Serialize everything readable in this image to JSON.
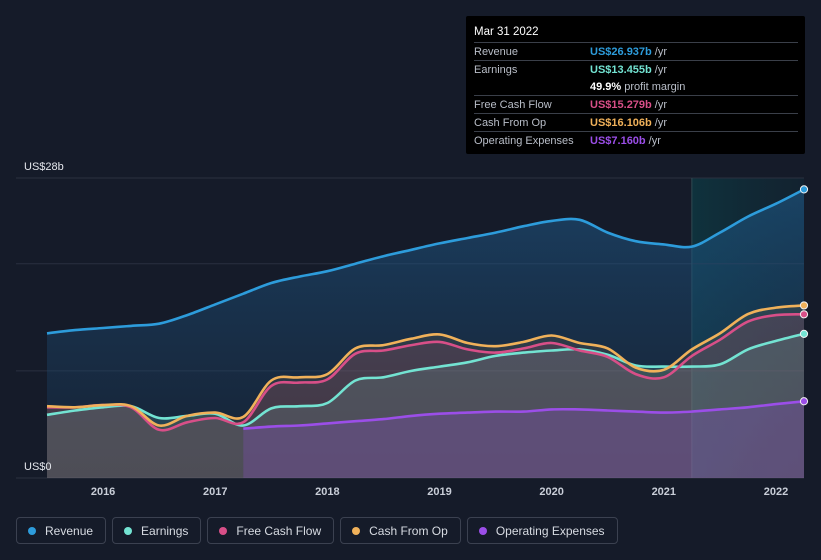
{
  "tooltip": {
    "date": "Mar 31 2022",
    "rows": [
      {
        "label": "Revenue",
        "value": "US$26.937b",
        "unit": "/yr",
        "color": "#2d9cdb"
      },
      {
        "label": "Earnings",
        "value": "US$13.455b",
        "unit": "/yr",
        "color": "#73e3d2"
      },
      {
        "label": "",
        "value": "49.9%",
        "unit": "profit margin",
        "color": "#ffffff"
      },
      {
        "label": "Free Cash Flow",
        "value": "US$15.279b",
        "unit": "/yr",
        "color": "#d84f88"
      },
      {
        "label": "Cash From Op",
        "value": "US$16.106b",
        "unit": "/yr",
        "color": "#f0b15a"
      },
      {
        "label": "Operating Expenses",
        "value": "US$7.160b",
        "unit": "/yr",
        "color": "#9b4ee8"
      }
    ]
  },
  "legend": [
    {
      "label": "Revenue",
      "color": "#2d9cdb"
    },
    {
      "label": "Earnings",
      "color": "#73e3d2"
    },
    {
      "label": "Free Cash Flow",
      "color": "#d84f88"
    },
    {
      "label": "Cash From Op",
      "color": "#f0b15a"
    },
    {
      "label": "Operating Expenses",
      "color": "#9b4ee8"
    }
  ],
  "chart_data": {
    "type": "area",
    "title": "",
    "xlabel": "",
    "ylabel": "",
    "unit": "US$b",
    "y_top_label": "US$28b",
    "y_bottom_label": "US$0",
    "ylim": [
      0,
      28
    ],
    "xlim": [
      2015.5,
      2022.25
    ],
    "x_ticks": [
      "2016",
      "2017",
      "2018",
      "2019",
      "2020",
      "2021",
      "2022"
    ],
    "x_tick_values": [
      2016,
      2017,
      2018,
      2019,
      2020,
      2021,
      2022
    ],
    "shaded_future_start": 2021.25,
    "series": [
      {
        "name": "Revenue",
        "color": "#2d9cdb",
        "x": [
          2015.5,
          2015.75,
          2016.0,
          2016.25,
          2016.5,
          2016.75,
          2017.0,
          2017.25,
          2017.5,
          2017.75,
          2018.0,
          2018.25,
          2018.5,
          2018.75,
          2019.0,
          2019.25,
          2019.5,
          2019.75,
          2020.0,
          2020.25,
          2020.5,
          2020.75,
          2021.0,
          2021.25,
          2021.5,
          2021.75,
          2022.0,
          2022.25
        ],
        "values": [
          13.5,
          13.8,
          14.0,
          14.2,
          14.4,
          15.2,
          16.2,
          17.2,
          18.2,
          18.8,
          19.3,
          20.0,
          20.7,
          21.3,
          21.9,
          22.4,
          22.9,
          23.5,
          24.0,
          24.1,
          22.9,
          22.1,
          21.8,
          21.6,
          22.9,
          24.4,
          25.6,
          26.937
        ]
      },
      {
        "name": "Earnings",
        "color": "#73e3d2",
        "x": [
          2015.5,
          2015.75,
          2016.0,
          2016.25,
          2016.5,
          2016.75,
          2017.0,
          2017.25,
          2017.5,
          2017.75,
          2018.0,
          2018.25,
          2018.5,
          2018.75,
          2019.0,
          2019.25,
          2019.5,
          2019.75,
          2020.0,
          2020.25,
          2020.5,
          2020.75,
          2021.0,
          2021.25,
          2021.5,
          2021.75,
          2022.0,
          2022.25
        ],
        "values": [
          5.9,
          6.3,
          6.6,
          6.7,
          5.6,
          5.8,
          6.0,
          4.9,
          6.5,
          6.7,
          7.0,
          9.1,
          9.4,
          10.0,
          10.4,
          10.8,
          11.4,
          11.7,
          11.9,
          12.0,
          11.5,
          10.5,
          10.4,
          10.4,
          10.6,
          12.0,
          12.8,
          13.455
        ]
      },
      {
        "name": "Free Cash Flow",
        "color": "#d84f88",
        "x": [
          2015.5,
          2015.75,
          2016.0,
          2016.25,
          2016.5,
          2016.75,
          2017.0,
          2017.25,
          2017.5,
          2017.75,
          2018.0,
          2018.25,
          2018.5,
          2018.75,
          2019.0,
          2019.25,
          2019.5,
          2019.75,
          2020.0,
          2020.25,
          2020.5,
          2020.75,
          2021.0,
          2021.25,
          2021.5,
          2021.75,
          2022.0,
          2022.25
        ],
        "values": [
          6.6,
          6.6,
          6.8,
          6.6,
          4.5,
          5.2,
          5.6,
          5.2,
          8.6,
          8.9,
          9.2,
          11.6,
          11.9,
          12.4,
          12.7,
          12.0,
          11.7,
          12.1,
          12.6,
          11.9,
          11.3,
          9.7,
          9.4,
          11.4,
          12.9,
          14.6,
          15.2,
          15.279
        ]
      },
      {
        "name": "Cash From Op",
        "color": "#f0b15a",
        "x": [
          2015.5,
          2015.75,
          2016.0,
          2016.25,
          2016.5,
          2016.75,
          2017.0,
          2017.25,
          2017.5,
          2017.75,
          2018.0,
          2018.25,
          2018.5,
          2018.75,
          2019.0,
          2019.25,
          2019.5,
          2019.75,
          2020.0,
          2020.25,
          2020.5,
          2020.75,
          2021.0,
          2021.25,
          2021.5,
          2021.75,
          2022.0,
          2022.25
        ],
        "values": [
          6.7,
          6.6,
          6.8,
          6.7,
          4.9,
          5.8,
          6.1,
          5.7,
          9.1,
          9.4,
          9.7,
          12.1,
          12.4,
          13.0,
          13.4,
          12.6,
          12.3,
          12.7,
          13.3,
          12.6,
          12.1,
          10.3,
          10.1,
          12.0,
          13.5,
          15.3,
          15.9,
          16.106
        ]
      },
      {
        "name": "Operating Expenses",
        "color": "#9b4ee8",
        "x": [
          2017.25,
          2017.5,
          2017.75,
          2018.0,
          2018.25,
          2018.5,
          2018.75,
          2019.0,
          2019.25,
          2019.5,
          2019.75,
          2020.0,
          2020.25,
          2020.5,
          2020.75,
          2021.0,
          2021.25,
          2021.5,
          2021.75,
          2022.0,
          2022.25
        ],
        "values": [
          4.6,
          4.8,
          4.9,
          5.1,
          5.3,
          5.5,
          5.8,
          6.0,
          6.1,
          6.2,
          6.2,
          6.4,
          6.4,
          6.3,
          6.2,
          6.1,
          6.2,
          6.4,
          6.6,
          6.9,
          7.16
        ]
      }
    ]
  }
}
